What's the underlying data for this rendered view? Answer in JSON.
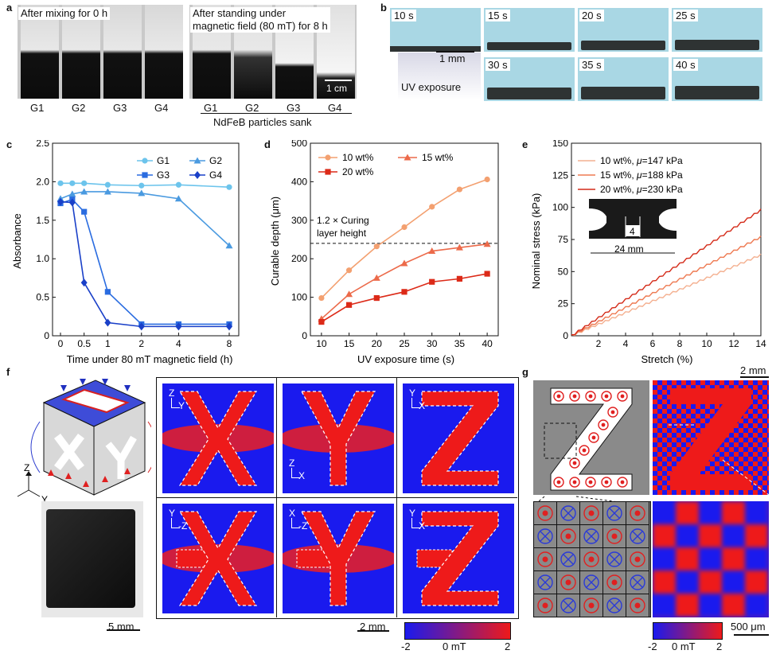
{
  "panel_labels": {
    "a": "a",
    "b": "b",
    "c": "c",
    "d": "d",
    "e": "e",
    "f": "f",
    "g": "g"
  },
  "panel_a": {
    "left_caption": "After mixing for 0 h",
    "right_caption_line1": "After standing under",
    "right_caption_line2": "magnetic field (80 mT) for 8 h",
    "scale": "1 cm",
    "left_groups": [
      "G1",
      "G2",
      "G3",
      "G4"
    ],
    "right_groups": [
      "G1",
      "G2",
      "G3",
      "G4"
    ],
    "footer": "NdFeB particles sank"
  },
  "panel_b": {
    "times": [
      "10 s",
      "15 s",
      "20 s",
      "25 s",
      "30 s",
      "35 s",
      "40 s"
    ],
    "scale": "1 mm",
    "uv_label": "UV exposure"
  },
  "panel_f": {
    "axes": {
      "x": "X",
      "y": "Y",
      "z": "Z"
    },
    "scale_photo": "5 mm",
    "scale_map": "2 mm",
    "colorbar": {
      "min": "-2",
      "mid": "0 mT",
      "max": "2"
    },
    "map_letters": [
      "X",
      "Y",
      "Z",
      "X",
      "Y",
      "Z"
    ],
    "map_axis_labels": [
      {
        "v": "Z",
        "h": "Y"
      },
      {
        "v": "Z",
        "h": "X"
      },
      {
        "v": "Y",
        "h": "X"
      },
      {
        "v": "Y",
        "h": "-Z"
      },
      {
        "v": "X",
        "h": "-Z"
      },
      {
        "v": "Y",
        "h": "X"
      }
    ]
  },
  "panel_g": {
    "letter": "Z",
    "scale_top": "2 mm",
    "scale_bottom": "500 μm",
    "colorbar": {
      "min": "-2",
      "mid": "0 mT",
      "max": "2"
    }
  },
  "chart_data": [
    {
      "type": "line",
      "panel": "c",
      "title": "",
      "xlabel": "Time under 80 mT magnetic field (h)",
      "ylabel": "Absorbance",
      "xlim": [
        -0.5,
        8.5
      ],
      "ylim": [
        0,
        2.5
      ],
      "xticks": [
        "0",
        "0.5",
        "1",
        "2",
        "4",
        "8"
      ],
      "yticks": [
        "0",
        "0.5",
        "1.0",
        "1.5",
        "2.0",
        "2.5"
      ],
      "legend": "top-right",
      "series": [
        {
          "name": "G1",
          "marker": "circle",
          "color": "#6cc4ec",
          "x": [
            0,
            0.25,
            0.5,
            1,
            2,
            4,
            8
          ],
          "y": [
            1.98,
            1.98,
            1.98,
            1.96,
            1.95,
            1.96,
            1.93
          ]
        },
        {
          "name": "G2",
          "marker": "triangle",
          "color": "#4a9ae0",
          "x": [
            0,
            0.25,
            0.5,
            1,
            2,
            4,
            8
          ],
          "y": [
            1.78,
            1.84,
            1.87,
            1.87,
            1.85,
            1.78,
            1.17
          ]
        },
        {
          "name": "G3",
          "marker": "square",
          "color": "#2a6ce0",
          "x": [
            0,
            0.25,
            0.5,
            1,
            2,
            4,
            8
          ],
          "y": [
            1.72,
            1.77,
            1.61,
            0.57,
            0.15,
            0.15,
            0.15
          ]
        },
        {
          "name": "G4",
          "marker": "diamond",
          "color": "#1a40c8",
          "x": [
            0,
            0.25,
            0.5,
            1,
            2,
            4,
            8
          ],
          "y": [
            1.74,
            1.73,
            0.69,
            0.17,
            0.12,
            0.12,
            0.12
          ]
        }
      ]
    },
    {
      "type": "line",
      "panel": "d",
      "title": "",
      "xlabel": "UV exposure time (s)",
      "ylabel": "Curable depth (μm)",
      "xlim": [
        8,
        42
      ],
      "ylim": [
        0,
        500
      ],
      "xticks": [
        "10",
        "15",
        "20",
        "25",
        "30",
        "35",
        "40"
      ],
      "yticks": [
        "0",
        "100",
        "200",
        "300",
        "400",
        "500"
      ],
      "legend": "top-left",
      "reference_line": {
        "y": 240,
        "label_line1": "1.2 × Curing",
        "label_line2": "layer height"
      },
      "series": [
        {
          "name": "10 wt%",
          "marker": "circle",
          "color": "#f3a070",
          "x": [
            10,
            15,
            20,
            25,
            30,
            35,
            40
          ],
          "y": [
            98,
            170,
            232,
            282,
            335,
            380,
            406
          ]
        },
        {
          "name": "15 wt%",
          "marker": "triangle",
          "color": "#ec6a4a",
          "x": [
            10,
            15,
            20,
            25,
            30,
            35,
            40
          ],
          "y": [
            44,
            108,
            150,
            188,
            220,
            229,
            238
          ]
        },
        {
          "name": "20 wt%",
          "marker": "square",
          "color": "#dc2a18",
          "x": [
            10,
            15,
            20,
            25,
            30,
            35,
            40
          ],
          "y": [
            36,
            80,
            98,
            114,
            140,
            148,
            161
          ]
        }
      ]
    },
    {
      "type": "line",
      "panel": "e",
      "title": "",
      "xlabel": "Stretch (%)",
      "ylabel": "Nominal stress (kPa)",
      "xlim": [
        0,
        14
      ],
      "ylim": [
        0,
        150
      ],
      "xticks": [
        "2",
        "4",
        "6",
        "8",
        "10",
        "12",
        "14"
      ],
      "yticks": [
        "0",
        "25",
        "50",
        "75",
        "100",
        "125",
        "150"
      ],
      "legend": "top-left",
      "inset_dims": {
        "width": "4",
        "length": "24 mm"
      },
      "series": [
        {
          "name": "10 wt%, μ=147 kPa",
          "name_prefix": "10 wt%, ",
          "mu": "μ",
          "name_suffix": "=147 kPa",
          "color": "#f4b090",
          "x": [
            0,
            2,
            4,
            6,
            8,
            10,
            12,
            14
          ],
          "y": [
            0,
            9,
            18,
            27,
            36,
            45,
            54,
            63
          ]
        },
        {
          "name": "15 wt%, μ=188 kPa",
          "name_prefix": "15 wt%, ",
          "mu": "μ",
          "name_suffix": "=188 kPa",
          "color": "#ee7a52",
          "x": [
            0,
            2,
            4,
            6,
            8,
            10,
            12,
            14
          ],
          "y": [
            0,
            11,
            22,
            33,
            44,
            55,
            66,
            77
          ]
        },
        {
          "name": "20 wt%, μ=230 kPa",
          "name_prefix": "20 wt%, ",
          "mu": "μ",
          "name_suffix": "=230 kPa",
          "color": "#d42a18",
          "x": [
            0,
            2,
            4,
            6,
            8,
            10,
            12,
            14
          ],
          "y": [
            0,
            14,
            28,
            42,
            56,
            70,
            84,
            98
          ]
        }
      ]
    }
  ]
}
